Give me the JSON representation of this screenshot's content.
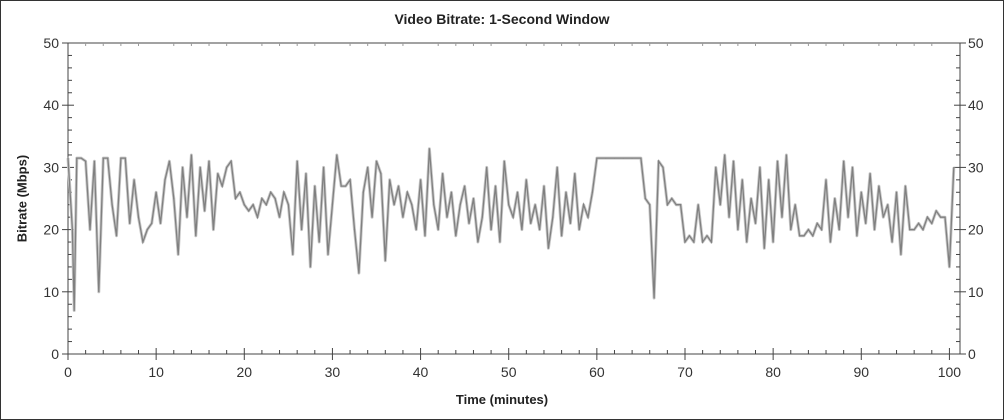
{
  "chart_data": {
    "type": "line",
    "title": "Video Bitrate: 1-Second Window",
    "xlabel": "Time (minutes)",
    "ylabel": "Bitrate (Mbps)",
    "xlim": [
      0,
      101.2
    ],
    "ylim": [
      0,
      50
    ],
    "x_ticks": [
      0,
      10,
      20,
      30,
      40,
      50,
      60,
      70,
      80,
      90,
      100
    ],
    "y_ticks": [
      0,
      10,
      20,
      30,
      40,
      50
    ],
    "y_axis_right_mirror": true,
    "grid": false,
    "legend": "none",
    "series": [
      {
        "color": "#808080",
        "points": [
          [
            0,
            31.5
          ],
          [
            0.5,
            20
          ],
          [
            0.7,
            7
          ],
          [
            1,
            31.5
          ],
          [
            1.5,
            31.5
          ],
          [
            2,
            31
          ],
          [
            2.5,
            20
          ],
          [
            3,
            31
          ],
          [
            3.5,
            10
          ],
          [
            4,
            31.5
          ],
          [
            4.5,
            31.5
          ],
          [
            5,
            24
          ],
          [
            5.5,
            19
          ],
          [
            6,
            31.5
          ],
          [
            6.5,
            31.5
          ],
          [
            7,
            21
          ],
          [
            7.5,
            28
          ],
          [
            8,
            22
          ],
          [
            8.5,
            18
          ],
          [
            9,
            20
          ],
          [
            9.5,
            21
          ],
          [
            10,
            26
          ],
          [
            10.5,
            21
          ],
          [
            11,
            28
          ],
          [
            11.5,
            31
          ],
          [
            12,
            25
          ],
          [
            12.5,
            16
          ],
          [
            13,
            30
          ],
          [
            13.5,
            22
          ],
          [
            14,
            32
          ],
          [
            14.5,
            19
          ],
          [
            15,
            30
          ],
          [
            15.5,
            23
          ],
          [
            16,
            31
          ],
          [
            16.5,
            20
          ],
          [
            17,
            29
          ],
          [
            17.5,
            27
          ],
          [
            18,
            30
          ],
          [
            18.5,
            31
          ],
          [
            19,
            25
          ],
          [
            19.5,
            26
          ],
          [
            20,
            24
          ],
          [
            20.5,
            23
          ],
          [
            21,
            24
          ],
          [
            21.5,
            22
          ],
          [
            22,
            25
          ],
          [
            22.5,
            24
          ],
          [
            23,
            26
          ],
          [
            23.5,
            25
          ],
          [
            24,
            22
          ],
          [
            24.5,
            26
          ],
          [
            25,
            24
          ],
          [
            25.5,
            16
          ],
          [
            26,
            31
          ],
          [
            26.5,
            20
          ],
          [
            27,
            29
          ],
          [
            27.5,
            14
          ],
          [
            28,
            27
          ],
          [
            28.5,
            18
          ],
          [
            29,
            30
          ],
          [
            29.5,
            16
          ],
          [
            30,
            24
          ],
          [
            30.5,
            32
          ],
          [
            31,
            27
          ],
          [
            31.5,
            27
          ],
          [
            32,
            28
          ],
          [
            32.5,
            20
          ],
          [
            33,
            13
          ],
          [
            33.5,
            26
          ],
          [
            34,
            30
          ],
          [
            34.5,
            22
          ],
          [
            35,
            31
          ],
          [
            35.5,
            29
          ],
          [
            36,
            15
          ],
          [
            36.5,
            28
          ],
          [
            37,
            24
          ],
          [
            37.5,
            27
          ],
          [
            38,
            22
          ],
          [
            38.5,
            26
          ],
          [
            39,
            24
          ],
          [
            39.5,
            20
          ],
          [
            40,
            28
          ],
          [
            40.5,
            19
          ],
          [
            41,
            33
          ],
          [
            41.5,
            24
          ],
          [
            42,
            20
          ],
          [
            42.5,
            29
          ],
          [
            43,
            22
          ],
          [
            43.5,
            26
          ],
          [
            44,
            19
          ],
          [
            44.5,
            24
          ],
          [
            45,
            27
          ],
          [
            45.5,
            21
          ],
          [
            46,
            25
          ],
          [
            46.5,
            18
          ],
          [
            47,
            22
          ],
          [
            47.5,
            30
          ],
          [
            48,
            20
          ],
          [
            48.5,
            27
          ],
          [
            49,
            18
          ],
          [
            49.5,
            31
          ],
          [
            50,
            24
          ],
          [
            50.5,
            22
          ],
          [
            51,
            26
          ],
          [
            51.5,
            20
          ],
          [
            52,
            28
          ],
          [
            52.5,
            21
          ],
          [
            53,
            24
          ],
          [
            53.5,
            20
          ],
          [
            54,
            27
          ],
          [
            54.5,
            17
          ],
          [
            55,
            22
          ],
          [
            55.5,
            30
          ],
          [
            56,
            19
          ],
          [
            56.5,
            26
          ],
          [
            57,
            21
          ],
          [
            57.5,
            29
          ],
          [
            58,
            20
          ],
          [
            58.5,
            24
          ],
          [
            59,
            22
          ],
          [
            59.5,
            26
          ],
          [
            60,
            31.5
          ],
          [
            61,
            31.5
          ],
          [
            62,
            31.5
          ],
          [
            63,
            31.5
          ],
          [
            64,
            31.5
          ],
          [
            65,
            31.5
          ],
          [
            65.5,
            25
          ],
          [
            66,
            24
          ],
          [
            66.5,
            9
          ],
          [
            67,
            31
          ],
          [
            67.5,
            30
          ],
          [
            68,
            24
          ],
          [
            68.5,
            25
          ],
          [
            69,
            24
          ],
          [
            69.5,
            24
          ],
          [
            70,
            18
          ],
          [
            70.5,
            19
          ],
          [
            71,
            18
          ],
          [
            71.5,
            24
          ],
          [
            72,
            18
          ],
          [
            72.5,
            19
          ],
          [
            73,
            18
          ],
          [
            73.5,
            30
          ],
          [
            74,
            24
          ],
          [
            74.5,
            32
          ],
          [
            75,
            22
          ],
          [
            75.5,
            31
          ],
          [
            76,
            20
          ],
          [
            76.5,
            28
          ],
          [
            77,
            18
          ],
          [
            77.5,
            25
          ],
          [
            78,
            21
          ],
          [
            78.5,
            30
          ],
          [
            79,
            17
          ],
          [
            79.5,
            28
          ],
          [
            80,
            18
          ],
          [
            80.5,
            31
          ],
          [
            81,
            22
          ],
          [
            81.5,
            32
          ],
          [
            82,
            20
          ],
          [
            82.5,
            24
          ],
          [
            83,
            19
          ],
          [
            83.5,
            19
          ],
          [
            84,
            20
          ],
          [
            84.5,
            19
          ],
          [
            85,
            21
          ],
          [
            85.5,
            20
          ],
          [
            86,
            28
          ],
          [
            86.5,
            18
          ],
          [
            87,
            25
          ],
          [
            87.5,
            20
          ],
          [
            88,
            31
          ],
          [
            88.5,
            22
          ],
          [
            89,
            30
          ],
          [
            89.5,
            19
          ],
          [
            90,
            26
          ],
          [
            90.5,
            21
          ],
          [
            91,
            29
          ],
          [
            91.5,
            20
          ],
          [
            92,
            27
          ],
          [
            92.5,
            22
          ],
          [
            93,
            24
          ],
          [
            93.5,
            18
          ],
          [
            94,
            26
          ],
          [
            94.5,
            16
          ],
          [
            95,
            27
          ],
          [
            95.5,
            20
          ],
          [
            96,
            20
          ],
          [
            96.5,
            21
          ],
          [
            97,
            20
          ],
          [
            97.5,
            22
          ],
          [
            98,
            21
          ],
          [
            98.5,
            23
          ],
          [
            99,
            22
          ],
          [
            99.5,
            22
          ],
          [
            100,
            14
          ],
          [
            100.5,
            30
          ]
        ]
      }
    ]
  }
}
